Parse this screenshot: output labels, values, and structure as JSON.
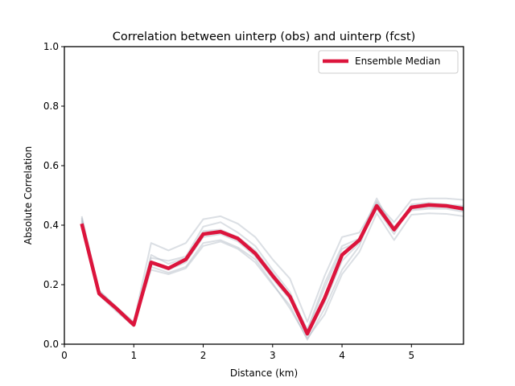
{
  "chart_data": {
    "type": "line",
    "title": "Correlation between uinterp (obs) and uinterp (fcst)",
    "xlabel": "Distance (km)",
    "ylabel": "Absolute Correlation",
    "xlim": [
      0,
      5.75
    ],
    "ylim": [
      0,
      1.0
    ],
    "xticks": [
      0,
      1,
      2,
      3,
      4,
      5
    ],
    "xtick_labels": [
      "0",
      "1",
      "2",
      "3",
      "4",
      "5"
    ],
    "yticks": [
      0.0,
      0.2,
      0.4,
      0.6,
      0.8,
      1.0
    ],
    "ytick_labels": [
      "0.0",
      "0.2",
      "0.4",
      "0.6",
      "0.8",
      "1.0"
    ],
    "grid": false,
    "legend": {
      "location": "top-right",
      "entries": [
        "Ensemble Median"
      ]
    },
    "x": [
      0.25,
      0.5,
      0.75,
      1.0,
      1.25,
      1.5,
      1.75,
      2.0,
      2.25,
      2.5,
      2.75,
      3.0,
      3.25,
      3.5,
      3.75,
      4.0,
      4.25,
      4.5,
      4.75,
      5.0,
      5.25,
      5.5,
      5.75
    ],
    "series": [
      {
        "name": "Ensemble Median",
        "color": "#dc143c",
        "role": "median",
        "values": [
          0.405,
          0.17,
          0.12,
          0.065,
          0.275,
          0.255,
          0.285,
          0.37,
          0.378,
          0.355,
          0.305,
          0.23,
          0.16,
          0.035,
          0.155,
          0.3,
          0.35,
          0.465,
          0.385,
          0.46,
          0.468,
          0.465,
          0.455
        ]
      },
      {
        "color": "#b0b8c4",
        "role": "member",
        "values": [
          0.43,
          0.18,
          0.125,
          0.075,
          0.34,
          0.315,
          0.34,
          0.42,
          0.43,
          0.405,
          0.36,
          0.285,
          0.22,
          0.075,
          0.23,
          0.36,
          0.375,
          0.475,
          0.41,
          0.485,
          0.49,
          0.49,
          0.485
        ]
      },
      {
        "color": "#b0b8c4",
        "role": "member",
        "values": [
          0.42,
          0.165,
          0.11,
          0.06,
          0.26,
          0.24,
          0.26,
          0.34,
          0.35,
          0.325,
          0.285,
          0.205,
          0.12,
          0.02,
          0.1,
          0.235,
          0.31,
          0.44,
          0.35,
          0.435,
          0.44,
          0.438,
          0.43
        ]
      },
      {
        "color": "#b0b8c4",
        "role": "member",
        "values": [
          0.41,
          0.175,
          0.12,
          0.07,
          0.29,
          0.28,
          0.295,
          0.395,
          0.41,
          0.375,
          0.33,
          0.25,
          0.175,
          0.045,
          0.19,
          0.32,
          0.345,
          0.455,
          0.37,
          0.47,
          0.475,
          0.47,
          0.465
        ]
      },
      {
        "color": "#b0b8c4",
        "role": "member",
        "values": [
          0.4,
          0.17,
          0.115,
          0.065,
          0.25,
          0.235,
          0.255,
          0.33,
          0.345,
          0.32,
          0.275,
          0.2,
          0.13,
          0.015,
          0.12,
          0.25,
          0.33,
          0.48,
          0.395,
          0.45,
          0.455,
          0.455,
          0.445
        ]
      },
      {
        "color": "#b0b8c4",
        "role": "member",
        "values": [
          0.415,
          0.18,
          0.125,
          0.07,
          0.3,
          0.27,
          0.29,
          0.38,
          0.385,
          0.36,
          0.315,
          0.24,
          0.165,
          0.05,
          0.205,
          0.33,
          0.355,
          0.49,
          0.38,
          0.465,
          0.47,
          0.468,
          0.46
        ]
      },
      {
        "color": "#b0b8c4",
        "role": "member",
        "values": [
          0.425,
          0.172,
          0.118,
          0.068,
          0.27,
          0.25,
          0.275,
          0.36,
          0.37,
          0.345,
          0.295,
          0.22,
          0.15,
          0.03,
          0.14,
          0.28,
          0.34,
          0.46,
          0.39,
          0.455,
          0.46,
          0.46,
          0.45
        ]
      }
    ]
  }
}
